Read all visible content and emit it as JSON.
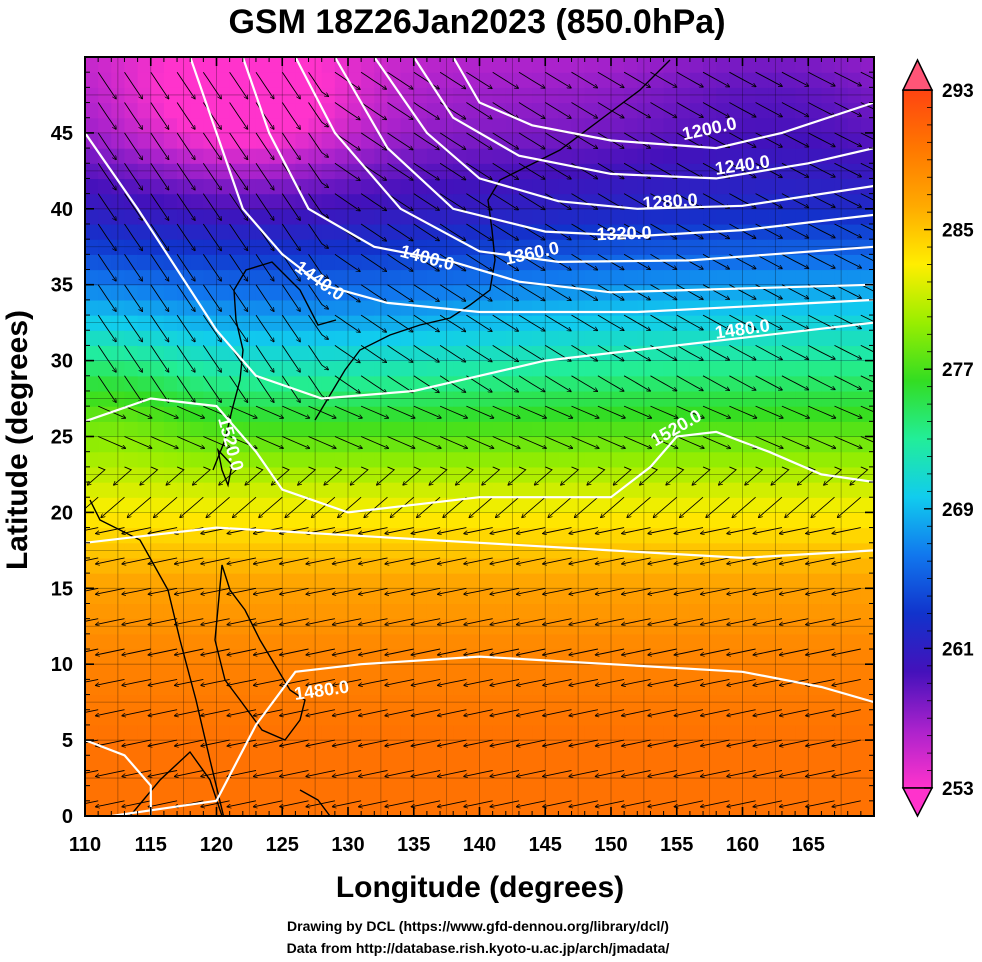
{
  "chart_data": {
    "type": "heatmap",
    "title": "GSM 18Z26Jan2023 (850.0hPa)",
    "xlabel": "Longitude (degrees)",
    "ylabel": "Latitude  (degrees)",
    "xlim": [
      110,
      170
    ],
    "ylim": [
      0,
      50
    ],
    "xticks": [
      "110",
      "115",
      "120",
      "125",
      "130",
      "135",
      "140",
      "145",
      "150",
      "155",
      "160",
      "165"
    ],
    "yticks": [
      "0",
      "5",
      "10",
      "15",
      "20",
      "25",
      "30",
      "35",
      "40",
      "45"
    ],
    "colorbar": {
      "range": [
        253,
        293
      ],
      "ticks": [
        "253",
        "261",
        "269",
        "277",
        "285",
        "293"
      ],
      "colors": [
        "#ff33cc",
        "#aa22cc",
        "#4411bb",
        "#1133cc",
        "#1177ee",
        "#11ccee",
        "#22ee99",
        "#33dd22",
        "#99ee00",
        "#ffee00",
        "#ffaa00",
        "#ff7700",
        "#ff4411"
      ]
    },
    "temperature_field": {
      "description_units": "K",
      "latitudes": [
        50,
        45,
        40,
        35,
        30,
        25,
        20,
        15,
        10,
        5,
        0
      ],
      "zonal_profile": [
        256,
        258,
        262,
        268,
        273,
        278,
        283,
        287,
        289,
        290,
        290
      ]
    },
    "height_contours": [
      {
        "label": "1200.0"
      },
      {
        "label": "1240.0"
      },
      {
        "label": "1280.0"
      },
      {
        "label": "1320.0"
      },
      {
        "label": "1360.0"
      },
      {
        "label": "1400.0"
      },
      {
        "label": "1440.0"
      },
      {
        "label": "1480.0"
      },
      {
        "label": "1520.0"
      },
      {
        "label": "1520.0"
      },
      {
        "label": "1480.0"
      },
      {
        "label": "1480.0"
      }
    ],
    "wind_vectors": "streamline arrows (northwesterly in north, easterly trades in south)"
  },
  "credits": {
    "line1": "Drawing by DCL (https://www.gfd-dennou.org/library/dcl/)",
    "line2": "Data from http://database.rish.kyoto-u.ac.jp/arch/jmadata/"
  }
}
